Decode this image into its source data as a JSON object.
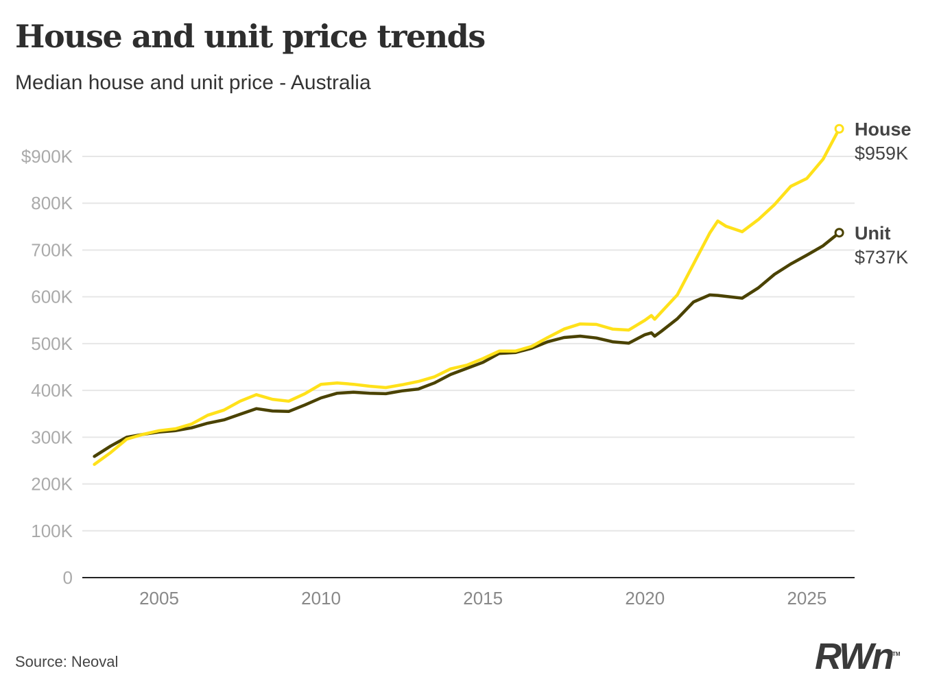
{
  "title": "House and unit price trends",
  "subtitle": "Median house and unit price - Australia",
  "source": "Source: Neoval",
  "logo_text": "RWn",
  "chart_data": {
    "type": "line",
    "title": "House and unit price trends",
    "subtitle": "Median house and unit price - Australia",
    "xlabel": "",
    "ylabel": "",
    "xlim": [
      2003,
      2026
    ],
    "ylim": [
      0,
      900000
    ],
    "grid": true,
    "x_ticks": [
      2005,
      2010,
      2015,
      2020,
      2025
    ],
    "y_ticks": [
      {
        "value": 0,
        "label": "0"
      },
      {
        "value": 100000,
        "label": "100K"
      },
      {
        "value": 200000,
        "label": "200K"
      },
      {
        "value": 300000,
        "label": "300K"
      },
      {
        "value": 400000,
        "label": "400K"
      },
      {
        "value": 500000,
        "label": "500K"
      },
      {
        "value": 600000,
        "label": "600K"
      },
      {
        "value": 700000,
        "label": "700K"
      },
      {
        "value": 800000,
        "label": "800K"
      },
      {
        "value": 900000,
        "label": "$900K"
      }
    ],
    "x": [
      2003.0,
      2003.5,
      2004.0,
      2004.5,
      2005.0,
      2005.5,
      2006.0,
      2006.5,
      2007.0,
      2007.5,
      2008.0,
      2008.5,
      2009.0,
      2009.5,
      2010.0,
      2010.5,
      2011.0,
      2011.5,
      2012.0,
      2012.5,
      2013.0,
      2013.5,
      2014.0,
      2014.5,
      2015.0,
      2015.5,
      2016.0,
      2016.5,
      2017.0,
      2017.5,
      2018.0,
      2018.5,
      2019.0,
      2019.5,
      2020.0,
      2020.2,
      2020.3,
      2020.5,
      2021.0,
      2021.5,
      2022.0,
      2022.25,
      2022.5,
      2023.0,
      2023.5,
      2024.0,
      2024.5,
      2025.0,
      2025.5,
      2026.0
    ],
    "series": [
      {
        "name": "House",
        "end_label": "$959K",
        "color": "#ffe11a",
        "values": [
          242000,
          267000,
          296000,
          306000,
          314000,
          318000,
          328000,
          347000,
          358000,
          377000,
          391000,
          381000,
          377000,
          393000,
          413000,
          416000,
          413000,
          409000,
          406000,
          412000,
          419000,
          429000,
          446000,
          454000,
          468000,
          484000,
          484000,
          494000,
          513000,
          531000,
          542000,
          541000,
          531000,
          529000,
          550000,
          560000,
          552000,
          567000,
          604000,
          670000,
          736000,
          762000,
          751000,
          739000,
          765000,
          797000,
          836000,
          853000,
          894000,
          959000
        ]
      },
      {
        "name": "Unit",
        "end_label": "$737K",
        "color": "#4a4200",
        "values": [
          259000,
          281000,
          300000,
          306000,
          311000,
          314000,
          320000,
          330000,
          337000,
          349000,
          361000,
          356000,
          355000,
          369000,
          384000,
          394000,
          396000,
          394000,
          393000,
          399000,
          403000,
          416000,
          434000,
          447000,
          460000,
          479000,
          481000,
          490000,
          504000,
          513000,
          516000,
          512000,
          504000,
          501000,
          519000,
          523000,
          516000,
          526000,
          553000,
          589000,
          604000,
          603000,
          601000,
          597000,
          619000,
          648000,
          670000,
          689000,
          709000,
          737000
        ]
      }
    ]
  }
}
